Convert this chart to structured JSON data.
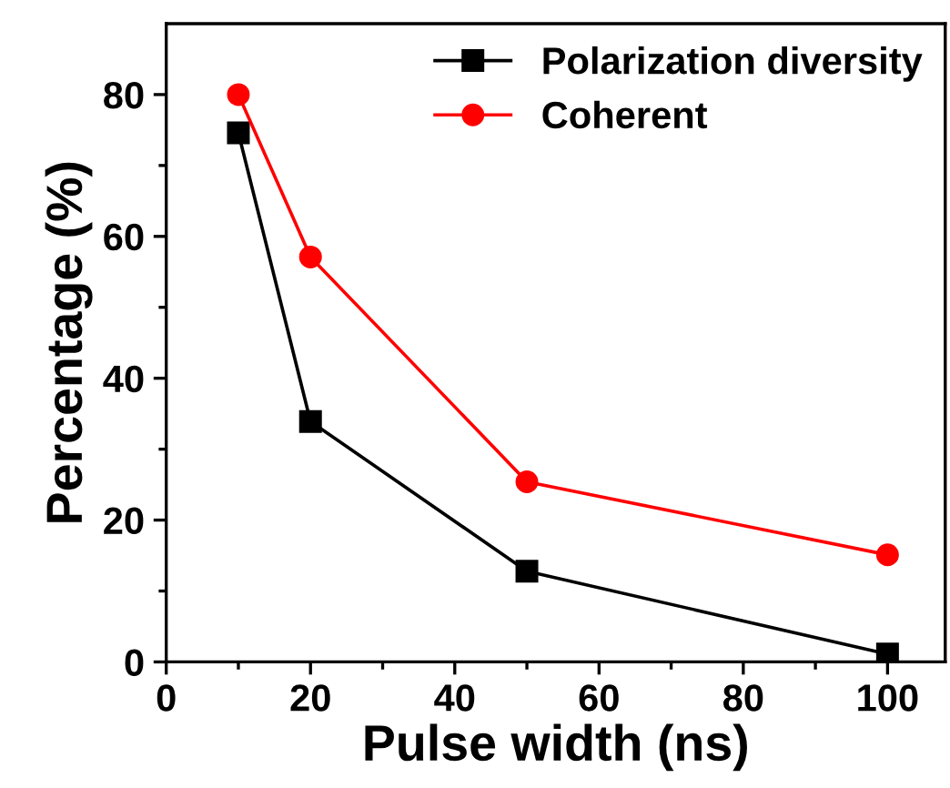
{
  "chart_data": {
    "type": "line",
    "xlabel": "Pulse width (ns)",
    "ylabel": "Percentage (%)",
    "x": [
      10,
      20,
      50,
      100
    ],
    "series": [
      {
        "name": "Polarization diversity",
        "color": "#000000",
        "marker": "square",
        "values": [
          74.6,
          33.9,
          12.8,
          1.1
        ]
      },
      {
        "name": "Coherent",
        "color": "#ff0000",
        "marker": "circle",
        "values": [
          80,
          57.1,
          25.4,
          15.1
        ]
      }
    ],
    "xlim": [
      0,
      108
    ],
    "xticks": [
      0,
      20,
      40,
      60,
      80,
      100
    ],
    "ylim": [
      0,
      90
    ],
    "yticks": [
      0,
      20,
      40,
      60,
      80
    ],
    "grid": false,
    "legend": "top right",
    "line_style": "solid"
  }
}
